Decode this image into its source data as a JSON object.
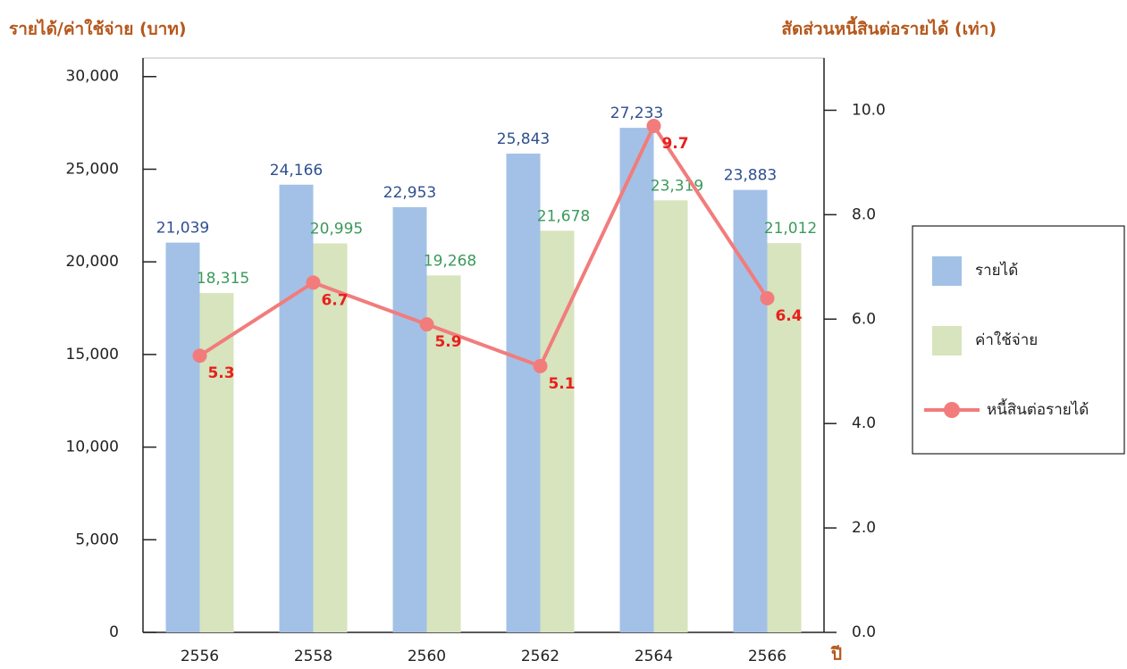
{
  "chart_data": {
    "type": "bar",
    "y_title": "รายได้/ค่าใช้จ่าย (บาท)",
    "y2_title": "สัดส่วนหนี้สินต่อรายได้ (เท่า)",
    "x_title": "ปี",
    "categories": [
      "2556",
      "2558",
      "2560",
      "2562",
      "2564",
      "2566"
    ],
    "series": [
      {
        "name": "รายได้",
        "type": "bar",
        "color": "#a3c1e6",
        "label_color": "#2f4f8f",
        "values": [
          21039,
          24166,
          22953,
          25843,
          27233,
          23883
        ],
        "value_labels": [
          "21,039",
          "24,166",
          "22,953",
          "25,843",
          "27,233",
          "23,883"
        ]
      },
      {
        "name": "ค่าใช้จ่าย",
        "type": "bar",
        "color": "#d7e4bd",
        "label_color": "#3a9a5a",
        "values": [
          18315,
          20995,
          19268,
          21678,
          23319,
          21012
        ],
        "value_labels": [
          "18,315",
          "20,995",
          "19,268",
          "21,678",
          "23,319",
          "21,012"
        ]
      },
      {
        "name": "หนี้สินต่อรายได้",
        "type": "line",
        "axis": "y2",
        "color": "#f27c7c",
        "label_color": "#e8201c",
        "values": [
          5.3,
          6.7,
          5.9,
          5.1,
          9.7,
          6.4
        ]
      }
    ],
    "ylim": [
      0,
      31000
    ],
    "yticks": [
      {
        "value": 0,
        "label": "0"
      },
      {
        "value": 5000,
        "label": "5,000"
      },
      {
        "value": 10000,
        "label": "10,000"
      },
      {
        "value": 15000,
        "label": "15,000"
      },
      {
        "value": 20000,
        "label": "20,000"
      },
      {
        "value": 25000,
        "label": "25,000"
      },
      {
        "value": 30000,
        "label": "30,000"
      }
    ],
    "y2lim": [
      0,
      11
    ],
    "y2ticks": [
      {
        "value": 0,
        "label": "0.0"
      },
      {
        "value": 2,
        "label": "2.0"
      },
      {
        "value": 4,
        "label": "4.0"
      },
      {
        "value": 6,
        "label": "6.0"
      },
      {
        "value": 8,
        "label": "8.0"
      },
      {
        "value": 10,
        "label": "10.0"
      }
    ],
    "legend": "right"
  }
}
